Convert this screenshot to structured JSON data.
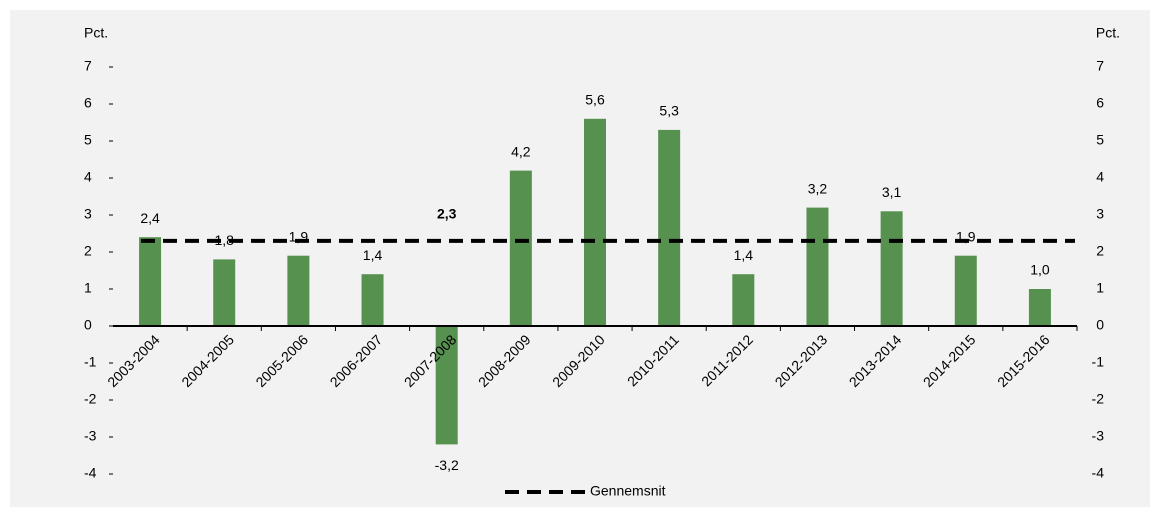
{
  "chart_data": {
    "type": "bar",
    "y_label": "Pct.",
    "y2_label": "Pct.",
    "categories": [
      "2003-2004",
      "2004-2005",
      "2005-2006",
      "2006-2007",
      "2007-2008",
      "2008-2009",
      "2009-2010",
      "2010-2011",
      "2011-2012",
      "2012-2013",
      "2013-2014",
      "2014-2015",
      "2015-2016"
    ],
    "values": [
      2.4,
      1.8,
      1.9,
      1.4,
      -3.2,
      4.2,
      5.6,
      5.3,
      1.4,
      3.2,
      3.1,
      1.9,
      1.0
    ],
    "value_labels": [
      "2,4",
      "1,8",
      "1,9",
      "1,4",
      "-3,2",
      "4,2",
      "5,6",
      "5,3",
      "1,4",
      "3,2",
      "3,1",
      "1,9",
      "1,0"
    ],
    "color": "#56914f",
    "average": {
      "name": "Gennemsnit",
      "value": 2.3,
      "value_label": "2,3",
      "color": "#000000"
    },
    "ylim": [
      -4,
      7
    ],
    "yticks": [
      -4,
      -3,
      -2,
      -1,
      0,
      1,
      2,
      3,
      4,
      5,
      6,
      7
    ],
    "y2lim": [
      -4,
      7
    ],
    "y2ticks": [
      -4,
      -3,
      -2,
      -1,
      0,
      1,
      2,
      3,
      4,
      5,
      6,
      7
    ],
    "grid": false
  }
}
